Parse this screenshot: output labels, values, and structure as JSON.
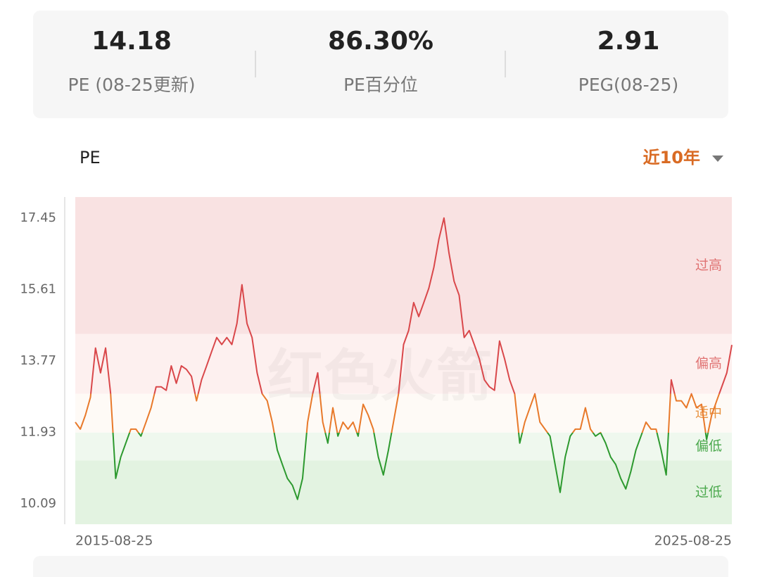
{
  "stats": [
    {
      "value": "14.18",
      "label": "PE (08-25更新)"
    },
    {
      "value": "86.30%",
      "label": "PE百分位"
    },
    {
      "value": "2.91",
      "label": "PEG(08-25)"
    }
  ],
  "range_selector": "近10年",
  "chart_data": {
    "type": "line",
    "watermark": "红色火箭",
    "categories": [
      "2015-08-25",
      null,
      null,
      null,
      null,
      null,
      null,
      null,
      null,
      null,
      null,
      null,
      null,
      null,
      null,
      null,
      null,
      null,
      null,
      null,
      null,
      null,
      null,
      null,
      null,
      null,
      null,
      null,
      null,
      null,
      null,
      null,
      null,
      null,
      null,
      null,
      null,
      null,
      null,
      null,
      null,
      null,
      null,
      null,
      null,
      null,
      null,
      null,
      null,
      null,
      null,
      null,
      null,
      null,
      null,
      null,
      null,
      null,
      null,
      null,
      null,
      null,
      null,
      null,
      null,
      null,
      null,
      null,
      null,
      null,
      null,
      null,
      null,
      null,
      null,
      null,
      null,
      null,
      null,
      null,
      null,
      null,
      null,
      null,
      null,
      null,
      null,
      null,
      null,
      null,
      null,
      null,
      null,
      null,
      null,
      null,
      null,
      null,
      null,
      null,
      null,
      null,
      null,
      null,
      null,
      null,
      null,
      null,
      null,
      null,
      null,
      null,
      null,
      null,
      null,
      null,
      null,
      null,
      null,
      null,
      null,
      null,
      null,
      null,
      null,
      null,
      null,
      null,
      null,
      null,
      "2025-08-25"
    ],
    "series": [
      {
        "name": "PE",
        "values": [
          12.19,
          12.01,
          12.37,
          12.83,
          14.1,
          13.46,
          14.1,
          12.92,
          10.74,
          11.29,
          11.65,
          12.01,
          12.01,
          11.83,
          12.19,
          12.56,
          13.1,
          13.1,
          13.01,
          13.64,
          13.19,
          13.64,
          13.55,
          13.37,
          12.74,
          13.28,
          13.64,
          14.01,
          14.37,
          14.19,
          14.37,
          14.19,
          14.73,
          15.73,
          14.73,
          14.37,
          13.46,
          12.92,
          12.74,
          12.19,
          11.47,
          11.1,
          10.74,
          10.56,
          10.2,
          10.74,
          12.19,
          12.92,
          13.46,
          12.19,
          11.65,
          12.56,
          11.83,
          12.19,
          12.01,
          12.19,
          11.83,
          12.65,
          12.37,
          12.01,
          11.29,
          10.83,
          11.47,
          12.19,
          12.92,
          14.19,
          14.55,
          15.27,
          14.91,
          15.27,
          15.64,
          16.18,
          16.91,
          17.45,
          16.54,
          15.82,
          15.46,
          14.37,
          14.55,
          14.19,
          13.82,
          13.28,
          13.1,
          13.01,
          14.28,
          13.82,
          13.28,
          12.92,
          11.65,
          12.19,
          12.56,
          12.92,
          12.19,
          12.01,
          11.83,
          11.1,
          10.38,
          11.29,
          11.83,
          12.01,
          12.01,
          12.56,
          12.01,
          11.83,
          11.92,
          11.65,
          11.29,
          11.1,
          10.74,
          10.47,
          10.92,
          11.47,
          11.83,
          12.19,
          12.01,
          12.01,
          11.47,
          10.83,
          13.28,
          12.74,
          12.74,
          12.56,
          12.92,
          12.56,
          12.65,
          11.74,
          12.37,
          12.74,
          13.1,
          13.46,
          14.18
        ]
      }
    ],
    "ylim": [
      9.56,
      17.99
    ],
    "yticks": [
      10.09,
      11.93,
      13.77,
      15.61,
      17.45
    ],
    "zones": [
      {
        "label": "过高",
        "from": 14.46,
        "to": 17.99,
        "fill": "#f9e2e2",
        "line_color": "#d9474a",
        "label_color": "#e07272"
      },
      {
        "label": "偏高",
        "from": 12.92,
        "to": 14.46,
        "fill": "#fdf0ef",
        "line_color": "#d9474a",
        "label_color": "#e07272"
      },
      {
        "label": "适中",
        "from": 11.92,
        "to": 12.92,
        "fill": "#fefaf6",
        "line_color": "#e8792a",
        "label_color": "#e8923f"
      },
      {
        "label": "偏低",
        "from": 11.2,
        "to": 11.92,
        "fill": "#eff8ee",
        "line_color": "#2c992e",
        "label_color": "#4aa84c"
      },
      {
        "label": "过低",
        "from": 9.56,
        "to": 11.2,
        "fill": "#e3f3e1",
        "line_color": "#2c992e",
        "label_color": "#4aa84c"
      }
    ]
  }
}
